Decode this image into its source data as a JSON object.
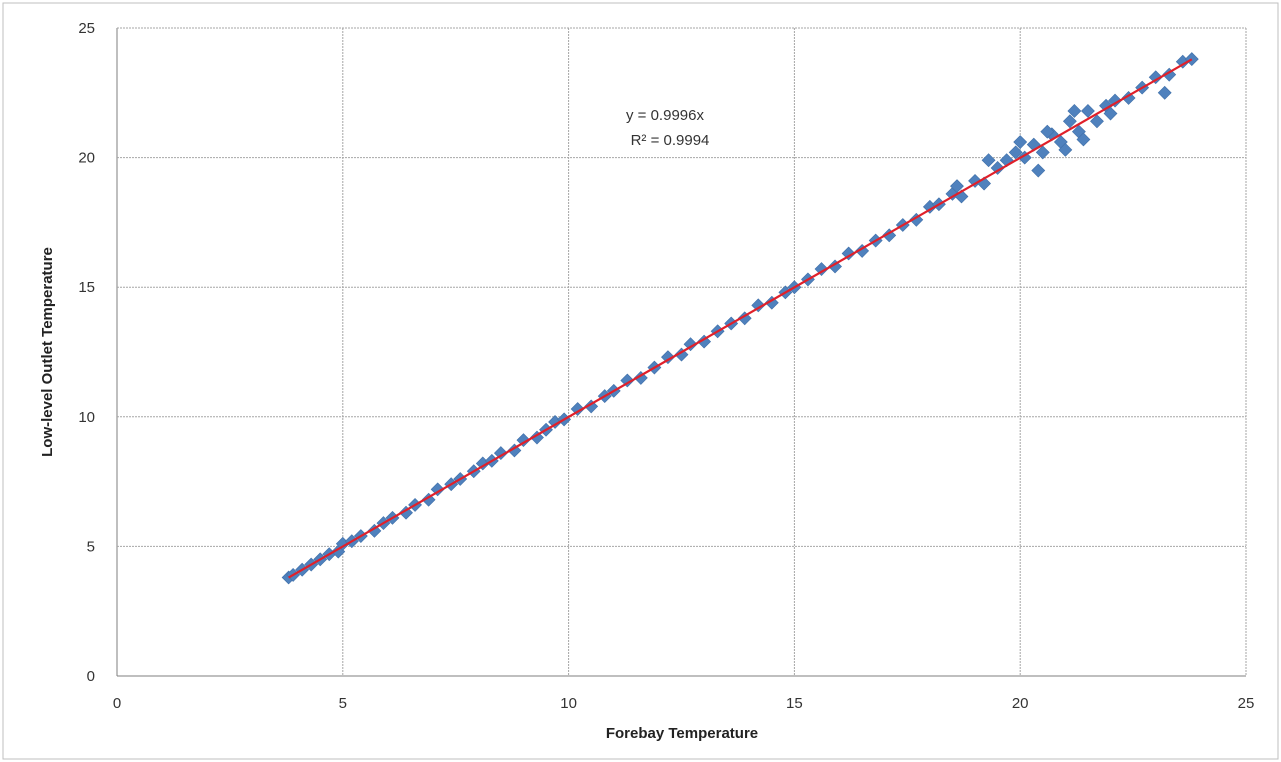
{
  "chart_data": {
    "type": "scatter",
    "xlabel": "Forebay Temperature",
    "ylabel": "Low-level Outlet Temperature",
    "xlim": [
      0,
      25
    ],
    "ylim": [
      0,
      25
    ],
    "x_ticks": [
      "0",
      "5",
      "10",
      "15",
      "20",
      "25"
    ],
    "y_ticks": [
      "0",
      "5",
      "10",
      "15",
      "20",
      "25"
    ],
    "grid": true,
    "marker_color": "#4f81bd",
    "trendline": {
      "equation": "y = 0.9996x",
      "r_squared": "R² = 0.9994",
      "slope": 0.9996,
      "color": "#e0202a"
    },
    "series": [
      {
        "x": [
          3.8,
          3.9,
          4.1,
          4.3,
          4.5,
          4.7,
          4.9,
          5.0,
          5.2,
          5.4,
          5.7,
          5.9,
          6.1,
          6.4,
          6.6,
          6.9,
          7.1,
          7.4,
          7.6,
          7.9,
          8.1,
          8.3,
          8.5,
          8.8,
          9.0,
          9.3,
          9.5,
          9.7,
          9.9,
          10.2,
          10.5,
          10.8,
          11.0,
          11.3,
          11.6,
          11.9,
          12.2,
          12.5,
          12.7,
          13.0,
          13.3,
          13.6,
          13.9,
          14.2,
          14.5,
          14.8,
          15.0,
          15.3,
          15.6,
          15.9,
          16.2,
          16.5,
          16.8,
          17.1,
          17.4,
          17.7,
          18.0,
          18.2,
          18.5,
          18.7,
          19.0,
          19.2,
          19.5,
          19.7,
          19.9,
          20.1,
          20.3,
          20.5,
          20.7,
          20.9,
          21.1,
          21.3,
          21.5,
          21.7,
          21.9,
          22.1,
          22.4,
          22.7,
          23.0,
          23.3,
          23.6,
          23.8,
          20.0,
          20.4,
          20.6,
          21.0,
          21.2,
          21.4,
          19.3,
          18.6,
          23.2,
          22.0
        ],
        "y": [
          3.8,
          3.9,
          4.1,
          4.3,
          4.5,
          4.7,
          4.8,
          5.1,
          5.2,
          5.4,
          5.6,
          5.9,
          6.1,
          6.3,
          6.6,
          6.8,
          7.2,
          7.4,
          7.6,
          7.9,
          8.2,
          8.3,
          8.6,
          8.7,
          9.1,
          9.2,
          9.5,
          9.8,
          9.9,
          10.3,
          10.4,
          10.8,
          11.0,
          11.4,
          11.5,
          11.9,
          12.3,
          12.4,
          12.8,
          12.9,
          13.3,
          13.6,
          13.8,
          14.3,
          14.4,
          14.8,
          15.0,
          15.3,
          15.7,
          15.8,
          16.3,
          16.4,
          16.8,
          17.0,
          17.4,
          17.6,
          18.1,
          18.2,
          18.6,
          18.5,
          19.1,
          19.0,
          19.6,
          19.9,
          20.2,
          20.0,
          20.5,
          20.2,
          20.9,
          20.6,
          21.4,
          21.0,
          21.8,
          21.4,
          22.0,
          22.2,
          22.3,
          22.7,
          23.1,
          23.2,
          23.7,
          23.8,
          20.6,
          19.5,
          21.0,
          20.3,
          21.8,
          20.7,
          19.9,
          18.9,
          22.5,
          21.7
        ]
      }
    ]
  }
}
